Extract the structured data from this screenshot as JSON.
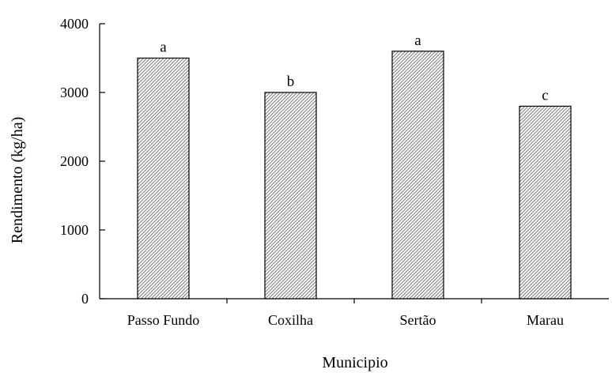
{
  "chart_data": {
    "type": "bar",
    "categories": [
      "Passo Fundo",
      "Coxilha",
      "Sertão",
      "Marau"
    ],
    "values": [
      3500,
      3000,
      3600,
      2800
    ],
    "bar_labels": [
      "a",
      "b",
      "a",
      "c"
    ],
    "title": "",
    "xlabel": "Municipio",
    "ylabel": "Rendimento (kg/ha)",
    "ylim": [
      0,
      4000
    ],
    "yticks": [
      0,
      1000,
      2000,
      3000,
      4000
    ],
    "grid": false,
    "legend": "none",
    "bar_fill": "diagonal hatch, dark gray on white",
    "colors": {
      "bar_stroke": "#000000",
      "hatch": "#555555",
      "background": "#ffffff"
    }
  }
}
